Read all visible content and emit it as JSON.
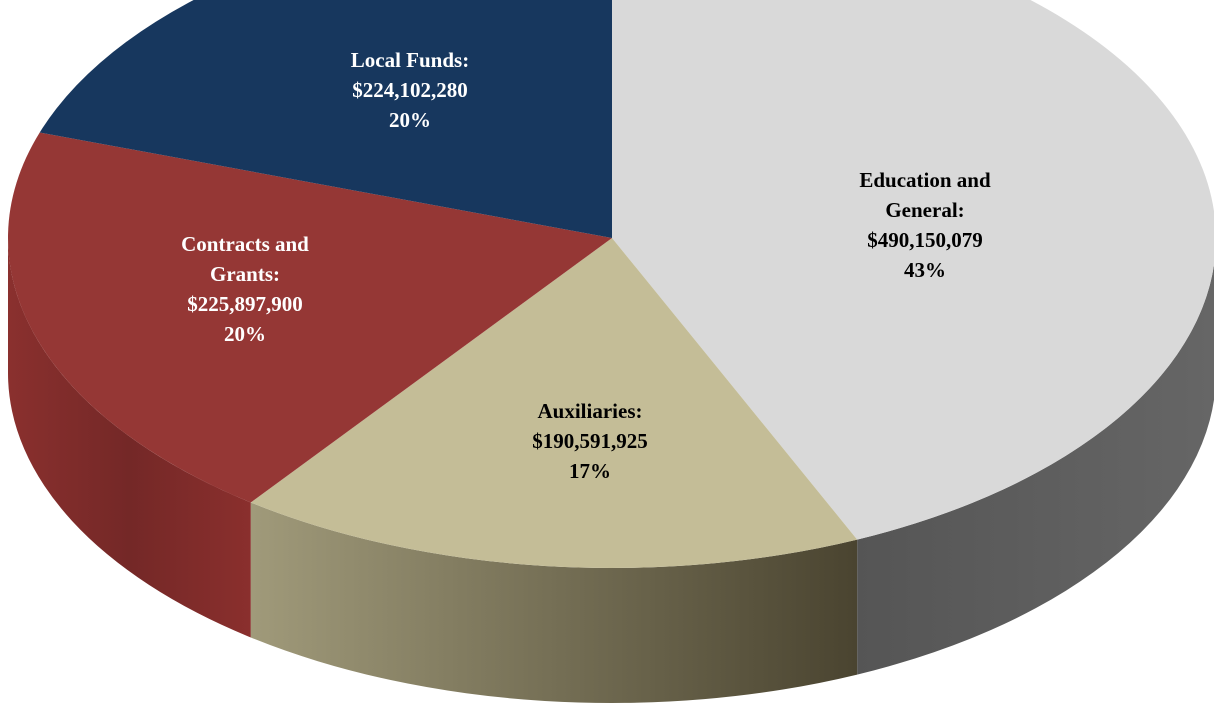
{
  "chart_data": {
    "type": "pie",
    "style": "3d",
    "slices": [
      {
        "label": "Education and General:",
        "value": 490150079,
        "value_text": "$490,150,079",
        "percent": 43,
        "percent_text": "43%",
        "color": "#d9d9d9",
        "side_light": "#6e6e6e",
        "side_dark": "#555555",
        "label_color": "#000000"
      },
      {
        "label": "Auxiliaries:",
        "value": 190591925,
        "value_text": "$190,591,925",
        "percent": 17,
        "percent_text": "17%",
        "color": "#c4bd97",
        "side_light": "#9a9575",
        "side_dark": "#4a4430",
        "label_color": "#000000"
      },
      {
        "label": "Contracts and Grants:",
        "value": 225897900,
        "value_text": "$225,897,900",
        "percent": 20,
        "percent_text": "20%",
        "color": "#953735",
        "side_light": "#8a302e",
        "side_dark": "#6e2322",
        "label_color": "#ffffff"
      },
      {
        "label": "Local Funds:",
        "value": 224102280,
        "value_text": "$224,102,280",
        "percent": 20,
        "percent_text": "20%",
        "color": "#17375e",
        "side_light": "#17375e",
        "side_dark": "#0f2540",
        "label_color": "#ffffff"
      }
    ]
  }
}
